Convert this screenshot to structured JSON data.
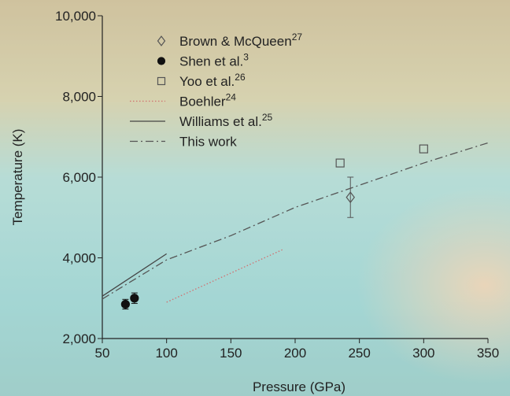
{
  "chart_data": {
    "type": "scatter",
    "xlabel": "Pressure (GPa)",
    "ylabel": "Temperature (K)",
    "xlim": [
      50,
      350
    ],
    "xticks": [
      50,
      100,
      150,
      200,
      250,
      300,
      350
    ],
    "ylim": [
      2000,
      10000
    ],
    "yticks": [
      {
        "value": 2000,
        "label": "2,000"
      },
      {
        "value": 4000,
        "label": "4,000"
      },
      {
        "value": 6000,
        "label": "6,000"
      },
      {
        "value": 8000,
        "label": "8,000"
      },
      {
        "value": 10000,
        "label": "10,000"
      }
    ],
    "series": [
      {
        "name": "Brown & McQueen",
        "ref": "27",
        "kind": "marker",
        "marker": "diamond",
        "color": "#555555",
        "x": [
          243
        ],
        "values": [
          5500
        ],
        "errors": [
          500
        ]
      },
      {
        "name": "Shen et al.",
        "ref": "3",
        "kind": "marker",
        "marker": "circle",
        "color": "#111111",
        "x": [
          68,
          75
        ],
        "values": [
          2850,
          3000
        ],
        "errors": [
          120,
          130
        ]
      },
      {
        "name": "Yoo et al.",
        "ref": "26",
        "kind": "marker",
        "marker": "square",
        "color": "#555555",
        "x": [
          235,
          300
        ],
        "values": [
          6350,
          6700
        ]
      },
      {
        "name": "Boehler",
        "ref": "24",
        "kind": "line",
        "style": "dotted",
        "color": "#d07070",
        "x": [
          100,
          190
        ],
        "values": [
          2900,
          4200
        ]
      },
      {
        "name": "Williams et al.",
        "ref": "25",
        "kind": "line",
        "style": "solid",
        "color": "#444444",
        "x": [
          50,
          100
        ],
        "values": [
          3050,
          4100
        ]
      },
      {
        "name": "This work",
        "kind": "line",
        "style": "dashdot",
        "color": "#555555",
        "x": [
          50,
          100,
          150,
          200,
          250,
          300,
          350
        ],
        "values": [
          2980,
          3950,
          4550,
          5250,
          5800,
          6350,
          6850
        ]
      }
    ]
  }
}
